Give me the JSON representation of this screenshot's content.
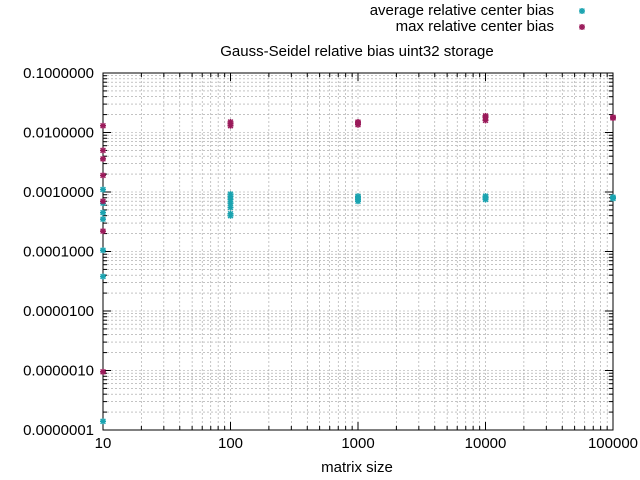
{
  "chart_data": {
    "type": "scatter",
    "title": "Gauss-Seidel relative bias uint32 storage",
    "xlabel": "matrix size",
    "ylabel": "",
    "xscale": "log",
    "yscale": "log",
    "xlim": [
      10,
      100000
    ],
    "ylim": [
      1e-07,
      0.1
    ],
    "grid": true,
    "legend_position": "top-right",
    "x_ticks": [
      {
        "value": 10,
        "label": "10"
      },
      {
        "value": 100,
        "label": "100"
      },
      {
        "value": 1000,
        "label": "1000"
      },
      {
        "value": 10000,
        "label": "10000"
      },
      {
        "value": 100000,
        "label": "100000"
      }
    ],
    "y_ticks": [
      {
        "value": 1e-07,
        "label": "0.0000001"
      },
      {
        "value": 1e-06,
        "label": "0.0000010"
      },
      {
        "value": 1e-05,
        "label": "0.0000100"
      },
      {
        "value": 0.0001,
        "label": "0.0001000"
      },
      {
        "value": 0.001,
        "label": "0.0010000"
      },
      {
        "value": 0.01,
        "label": "0.0100000"
      },
      {
        "value": 0.1,
        "label": "0.1000000"
      }
    ],
    "series": [
      {
        "name": "average relative center bias",
        "color": "#1aa3b0",
        "points": [
          [
            10,
            1.4e-07
          ],
          [
            10,
            3.8e-05
          ],
          [
            10,
            0.000105
          ],
          [
            10,
            0.00035
          ],
          [
            10,
            0.00045
          ],
          [
            10,
            0.00065
          ],
          [
            10,
            0.0011
          ],
          [
            100,
            0.0004
          ],
          [
            100,
            0.00043
          ],
          [
            100,
            0.00055
          ],
          [
            100,
            0.00065
          ],
          [
            100,
            0.00075
          ],
          [
            100,
            0.00085
          ],
          [
            100,
            0.00092
          ],
          [
            1000,
            0.0007
          ],
          [
            1000,
            0.00075
          ],
          [
            1000,
            0.0008
          ],
          [
            1000,
            0.00085
          ],
          [
            10000,
            0.00075
          ],
          [
            10000,
            0.0008
          ],
          [
            10000,
            0.00085
          ],
          [
            100000,
            0.00078
          ],
          [
            100000,
            0.00082
          ]
        ]
      },
      {
        "name": "max relative center bias",
        "color": "#9a1a5a",
        "points": [
          [
            10,
            9.5e-07
          ],
          [
            10,
            0.00022
          ],
          [
            10,
            0.0007
          ],
          [
            10,
            0.0019
          ],
          [
            10,
            0.0036
          ],
          [
            10,
            0.005
          ],
          [
            10,
            0.013
          ],
          [
            100,
            0.013
          ],
          [
            100,
            0.014
          ],
          [
            100,
            0.015
          ],
          [
            1000,
            0.0135
          ],
          [
            1000,
            0.0145
          ],
          [
            1000,
            0.015
          ],
          [
            10000,
            0.016
          ],
          [
            10000,
            0.018
          ],
          [
            10000,
            0.019
          ],
          [
            100000,
            0.0175
          ],
          [
            100000,
            0.018
          ]
        ]
      }
    ]
  }
}
